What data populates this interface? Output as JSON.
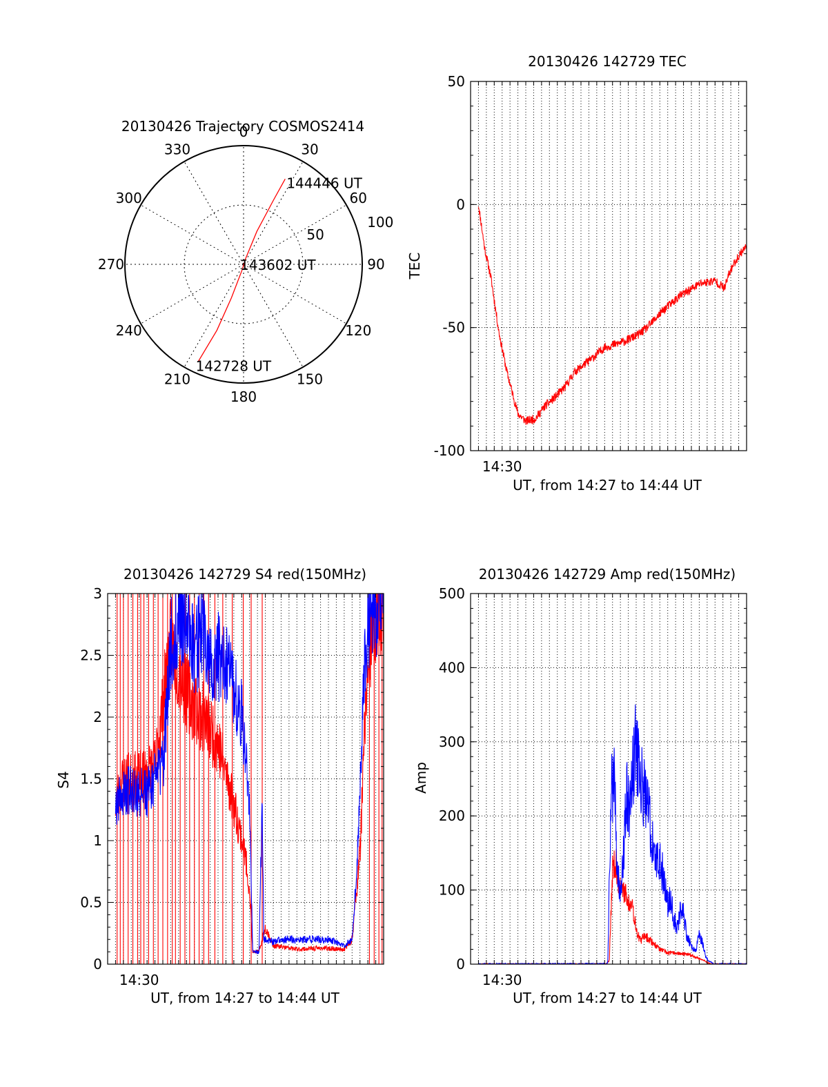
{
  "chart_data": [
    {
      "type": "polar",
      "title": "20130426 Trajectory COSMOS2414",
      "angle_ticks": [
        {
          "deg": 0,
          "label": "0"
        },
        {
          "deg": 30,
          "label": "30"
        },
        {
          "deg": 60,
          "label": "60"
        },
        {
          "deg": 90,
          "label": "90"
        },
        {
          "deg": 120,
          "label": "120"
        },
        {
          "deg": 150,
          "label": "150"
        },
        {
          "deg": 180,
          "label": "180"
        },
        {
          "deg": 210,
          "label": "210"
        },
        {
          "deg": 240,
          "label": "240"
        },
        {
          "deg": 270,
          "label": "270"
        },
        {
          "deg": 300,
          "label": "300"
        },
        {
          "deg": 330,
          "label": "330"
        }
      ],
      "radial_ticks": [
        {
          "value": 50,
          "label": "50"
        },
        {
          "value": 100,
          "label": "100"
        }
      ],
      "radial_max": 100,
      "series": [
        {
          "color": "#ff0000",
          "points": [
            [
              205,
              90
            ],
            [
              202,
              60
            ],
            [
              200,
              30
            ],
            [
              195,
              5
            ],
            [
              20,
              5
            ],
            [
              22,
              30
            ],
            [
              25,
              60
            ],
            [
              26,
              80
            ]
          ]
        }
      ],
      "annotations": [
        {
          "text": "144446 UT",
          "az": 26,
          "r": 80,
          "anchor": "end"
        },
        {
          "text": "143602 UT",
          "az": 200,
          "r": 0,
          "anchor": "center"
        },
        {
          "text": "142728 UT",
          "az": 205,
          "r": 90,
          "anchor": "start"
        }
      ]
    },
    {
      "type": "line",
      "title": "20130426 142729 TEC",
      "xlabel": "UT, from 14:27 to 14:44 UT",
      "ylabel": "TEC",
      "xlim": [
        0,
        17.5
      ],
      "ylim": [
        -100,
        50
      ],
      "yticks": [
        50,
        0,
        -50,
        -100
      ],
      "xticks": [
        {
          "value": 2,
          "label": "14:30"
        }
      ],
      "grid": true,
      "x_grid_step": 0.5,
      "series": [
        {
          "color": "#ff0000",
          "noise": 0.6,
          "x": [
            0.5,
            0.9,
            1.3,
            1.8,
            2.3,
            3.0,
            3.5,
            4.1,
            4.7,
            5.4,
            6.0,
            6.6,
            7.2,
            7.8,
            8.5,
            9.6,
            10.6,
            11.2,
            12.2,
            13.3,
            14.6,
            15.5,
            16.1,
            16.4,
            16.7,
            17.2,
            17.5
          ],
          "y": [
            0,
            -18,
            -30,
            -52,
            -68,
            -85,
            -88,
            -87,
            -82,
            -78,
            -74,
            -68,
            -65,
            -62,
            -58,
            -56,
            -53,
            -50,
            -43,
            -37,
            -32,
            -31,
            -34,
            -28,
            -24,
            -19,
            -17
          ]
        }
      ]
    },
    {
      "type": "line",
      "title": "20130426 142729 S4 red(150MHz)",
      "xlabel": "UT, from 14:27 to 14:44 UT",
      "ylabel": "S4",
      "xlim": [
        0,
        17.5
      ],
      "ylim": [
        0,
        3
      ],
      "yticks": [
        3,
        2.5,
        2,
        1.5,
        1,
        0.5,
        0
      ],
      "xticks": [
        {
          "value": 2,
          "label": "14:30"
        }
      ],
      "grid": true,
      "x_grid_step": 0.5,
      "series": [
        {
          "color": "#ff0000",
          "noise": 0.3,
          "x": [
            0.5,
            1.0,
            2.0,
            3.0,
            4.0,
            5.0,
            6.0,
            7.0,
            8.0,
            8.7,
            9.0,
            9.2,
            9.6,
            10.0,
            10.5,
            12.0,
            13.5,
            15.0,
            15.5,
            16.0,
            16.5,
            17.5
          ],
          "y": [
            1.3,
            1.5,
            1.5,
            1.6,
            2.6,
            2.2,
            2.0,
            1.8,
            1.3,
            0.9,
            0.6,
            0.1,
            0.1,
            0.3,
            0.15,
            0.12,
            0.13,
            0.12,
            0.2,
            0.9,
            2.5,
            3.0
          ],
          "spike_x": [
            0.6,
            0.8,
            1.0,
            1.3,
            1.6,
            1.9,
            2.1,
            2.3,
            2.6,
            2.9,
            3.2,
            3.5,
            3.8,
            4.1,
            4.3,
            4.6,
            4.9,
            5.2,
            5.5,
            5.8,
            6.1,
            6.4,
            6.8,
            7.3,
            7.9,
            8.6,
            9.1,
            9.8,
            16.6,
            16.9,
            17.2,
            17.4
          ],
          "spike_y": [
            3,
            0
          ]
        },
        {
          "color": "#0000ff",
          "noise": 0.3,
          "x": [
            0.5,
            1.0,
            2.0,
            2.5,
            3.0,
            3.5,
            4.0,
            4.5,
            5.0,
            5.5,
            6.0,
            6.5,
            7.0,
            7.5,
            8.0,
            8.5,
            8.8,
            9.0,
            9.2,
            9.6,
            9.8,
            9.9,
            10.0,
            10.5,
            11.0,
            12.0,
            13.0,
            14.0,
            15.0,
            15.5,
            15.8,
            16.0,
            16.3,
            16.6,
            17.0,
            17.5
          ],
          "y": [
            1.3,
            1.4,
            1.4,
            1.4,
            1.5,
            1.6,
            2.6,
            2.8,
            2.8,
            2.5,
            2.7,
            2.4,
            2.5,
            2.4,
            2.2,
            2.0,
            1.7,
            1.2,
            0.1,
            0.1,
            1.3,
            0.2,
            0.2,
            0.18,
            0.2,
            0.2,
            0.2,
            0.2,
            0.15,
            0.2,
            0.8,
            1.5,
            2.4,
            2.8,
            2.9,
            3.0
          ]
        }
      ]
    },
    {
      "type": "line",
      "title": "20130426 142729 Amp red(150MHz)",
      "xlabel": "UT, from 14:27 to 14:44 UT",
      "ylabel": "Amp",
      "xlim": [
        0,
        17.5
      ],
      "ylim": [
        0,
        500
      ],
      "yticks": [
        500,
        400,
        300,
        200,
        100,
        0
      ],
      "xticks": [
        {
          "value": 2,
          "label": "14:30"
        }
      ],
      "grid": true,
      "x_grid_step": 0.5,
      "series": [
        {
          "color": "#ff0000",
          "noise": 0.35,
          "x": [
            0.5,
            8.6,
            8.8,
            9.0,
            9.2,
            9.4,
            9.6,
            9.8,
            10.0,
            10.2,
            10.4,
            10.6,
            10.8,
            11.0,
            11.5,
            12.0,
            12.5,
            13.0,
            14.0,
            14.8,
            15.2,
            15.5,
            17.5
          ],
          "y": [
            0,
            0,
            5,
            130,
            140,
            110,
            95,
            100,
            80,
            90,
            60,
            40,
            30,
            40,
            30,
            20,
            15,
            15,
            12,
            5,
            0,
            0,
            0
          ]
        },
        {
          "color": "#0000ff",
          "noise": 0.45,
          "x": [
            0.5,
            8.5,
            8.7,
            8.9,
            9.1,
            9.3,
            9.5,
            9.7,
            9.9,
            10.1,
            10.3,
            10.5,
            10.7,
            10.9,
            11.1,
            11.3,
            11.5,
            11.7,
            11.9,
            12.1,
            12.3,
            12.5,
            12.7,
            12.9,
            13.1,
            13.3,
            13.5,
            13.7,
            13.9,
            14.1,
            14.3,
            14.5,
            14.7,
            14.9,
            15.1,
            15.4,
            17.5
          ],
          "y": [
            0,
            0,
            2,
            230,
            250,
            130,
            90,
            150,
            240,
            200,
            270,
            300,
            250,
            240,
            230,
            200,
            170,
            140,
            140,
            130,
            110,
            80,
            90,
            60,
            50,
            70,
            70,
            40,
            30,
            20,
            20,
            40,
            30,
            10,
            5,
            0,
            0
          ]
        }
      ]
    }
  ]
}
